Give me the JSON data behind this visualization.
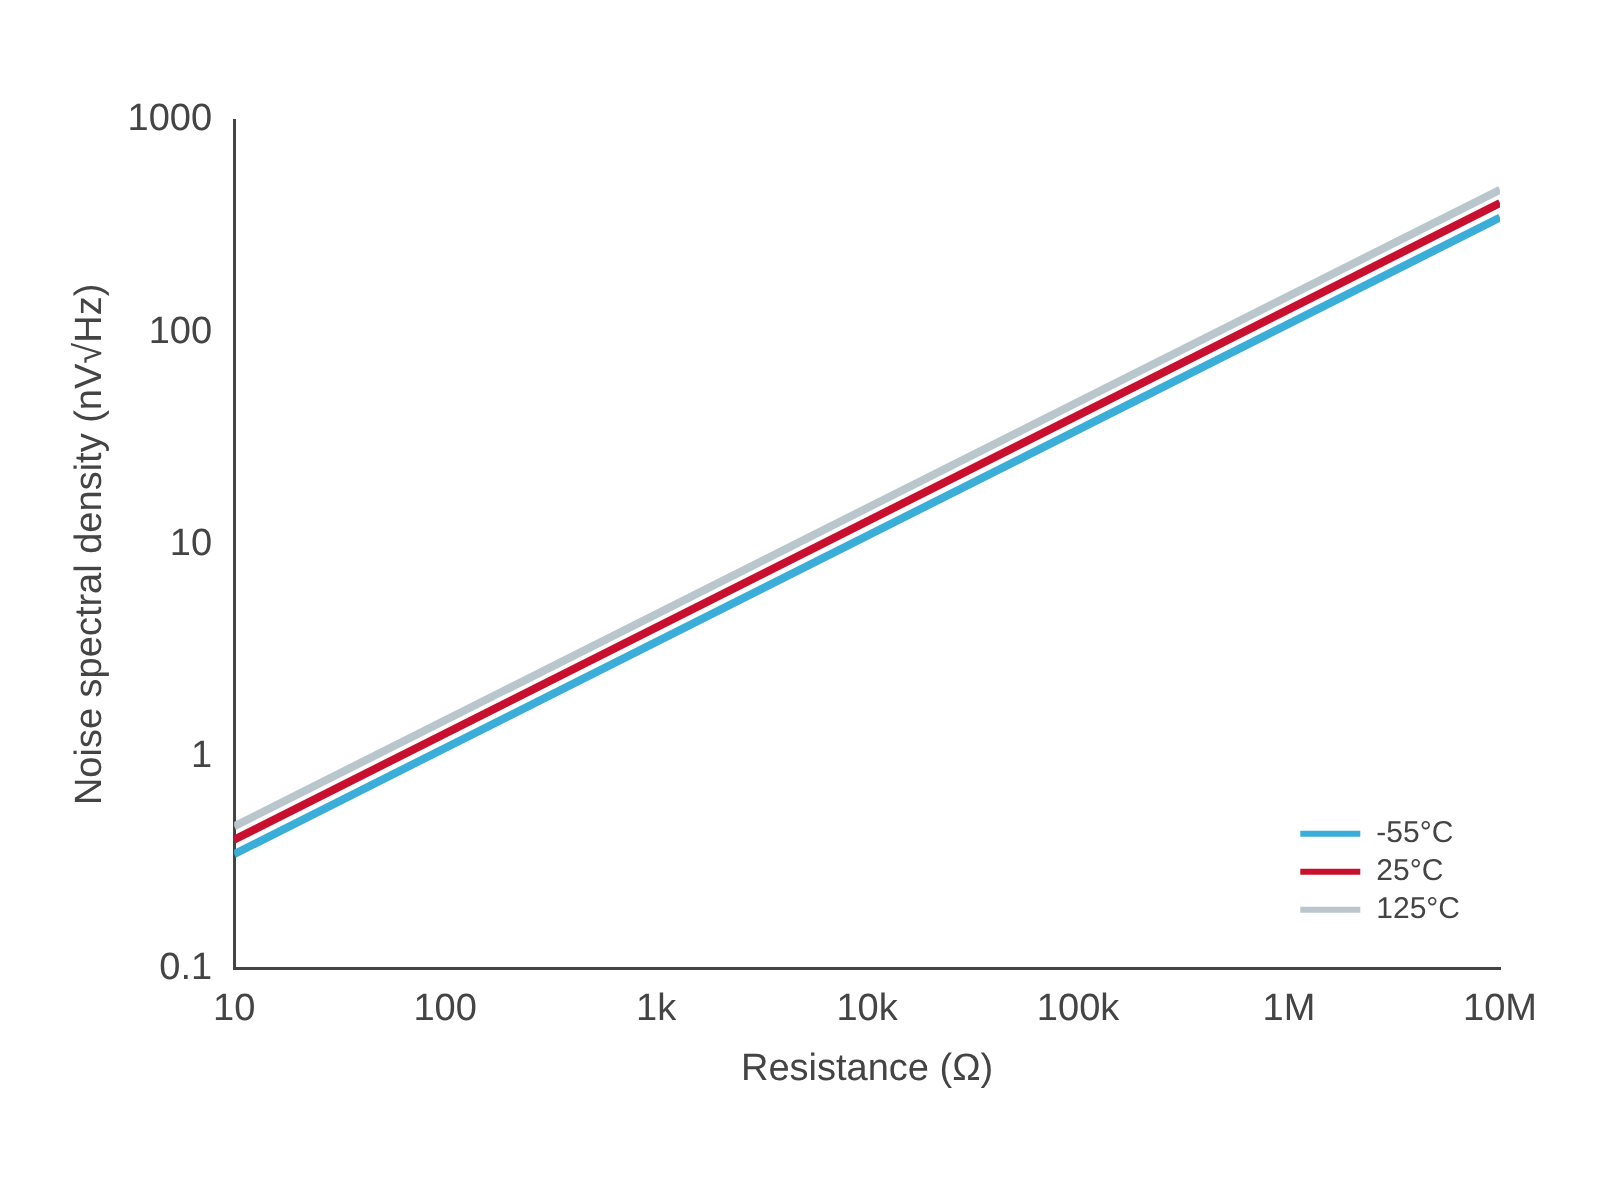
{
  "chart_data": {
    "type": "line",
    "xlabel": "Resistance (Ω)",
    "ylabel": "Noise spectral density (nV√Hz)",
    "log": "xy",
    "x": [
      10,
      10000000
    ],
    "series": [
      {
        "name": "-55°C",
        "color": "#3aaed8",
        "values": [
          0.347,
          347
        ]
      },
      {
        "name": "25°C",
        "color": "#c8102e",
        "values": [
          0.406,
          406
        ]
      },
      {
        "name": "125°C",
        "color": "#b9c6cc",
        "values": [
          0.469,
          469
        ]
      }
    ],
    "xlim": [
      10,
      10000000
    ],
    "xticks": [
      10,
      100,
      {
        "value": 1000,
        "label": "1k"
      },
      {
        "value": 10000,
        "label": "10k"
      },
      {
        "value": 100000,
        "label": "100k"
      },
      {
        "value": 1000000,
        "label": "1M"
      },
      {
        "value": 10000000,
        "label": "10M"
      }
    ],
    "ylim": [
      0.1,
      1000
    ],
    "yticks": [
      0.1,
      1,
      10,
      100,
      1000
    ],
    "grid": false,
    "legend": "bottom right",
    "marker": "none",
    "line_style": "solid"
  }
}
